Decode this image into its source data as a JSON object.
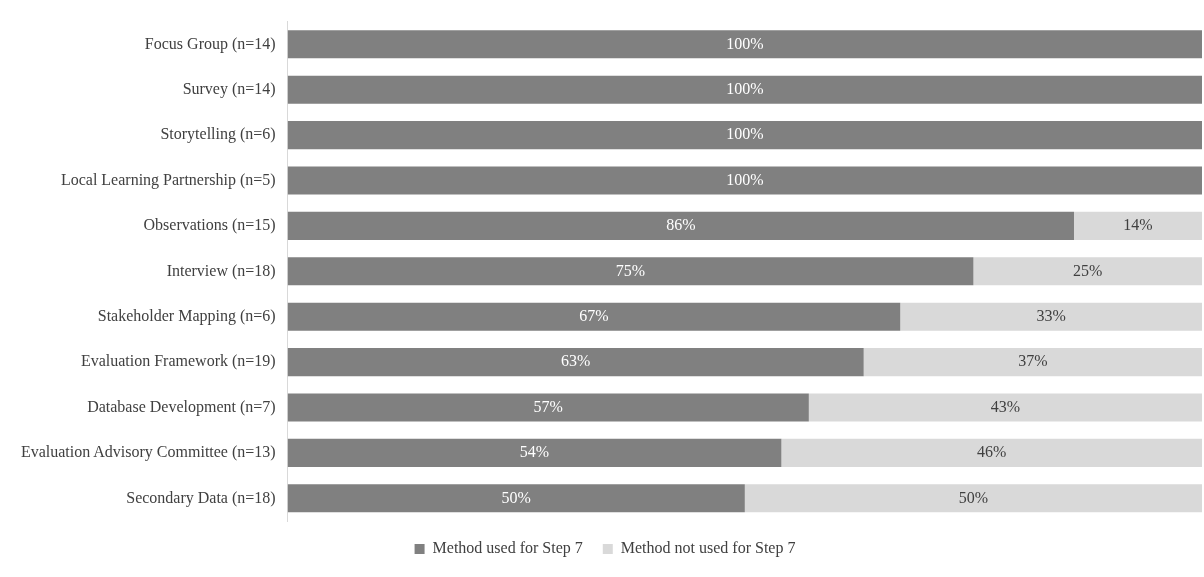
{
  "chart_data": {
    "type": "bar",
    "orientation": "horizontal",
    "stacked": true,
    "legend": "bottom",
    "tick_labels": "y",
    "xlim": [
      0,
      100
    ],
    "categories": [
      "Focus Group (n=14)",
      "Survey (n=14)",
      "Storytelling (n=6)",
      "Local Learning Partnership (n=5)",
      "Observations (n=15)",
      "Interview (n=18)",
      "Stakeholder Mapping (n=6)",
      "Evaluation Framework (n=19)",
      "Database Development (n=7)",
      "Evaluation Advisory Committee (n=13)",
      "Secondary Data (n=18)"
    ],
    "series": [
      {
        "name": "Method used for Step 7",
        "color": "#808080",
        "values": [
          100,
          100,
          100,
          100,
          86,
          75,
          67,
          63,
          57,
          54,
          50
        ],
        "value_labels": [
          "100%",
          "100%",
          "100%",
          "100%",
          "86%",
          "75%",
          "67%",
          "63%",
          "57%",
          "54%",
          "50%"
        ]
      },
      {
        "name": "Method not used for Step 7",
        "color": "#d9d9d9",
        "values": [
          0,
          0,
          0,
          0,
          14,
          25,
          33,
          37,
          43,
          46,
          50
        ],
        "value_labels": [
          null,
          null,
          null,
          null,
          "14%",
          "25%",
          "33%",
          "37%",
          "43%",
          "46%",
          "50%"
        ]
      }
    ]
  }
}
